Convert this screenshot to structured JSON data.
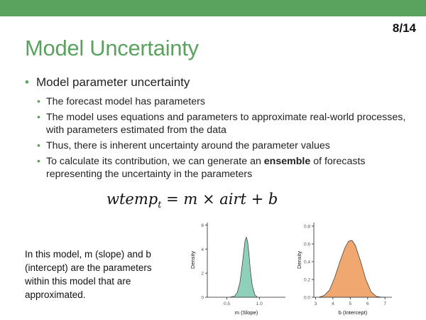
{
  "slide_number": "8/14",
  "title": "Model Uncertainty",
  "bullet_main": "Model parameter uncertainty",
  "sub_bullets": [
    "The forecast model has parameters",
    "The model uses equations and parameters to approximate real-world processes, with parameters estimated from the data",
    "Thus, there is inherent uncertainty around the parameter values"
  ],
  "sub_bullet_ensemble": {
    "before": "To calculate its contribution, we can generate an ",
    "bold": "ensemble",
    "after": " of forecasts representing the uncertainty in the parameters"
  },
  "equation": {
    "lhs": "wtemp",
    "subscript": "t",
    "rhs": "= m × airt + b"
  },
  "note": "In this model, m (slope) and b (intercept) are the parameters within this model that are approximated.",
  "colors": {
    "accent": "#5aa35e",
    "slope_fill": "#8fd0bb",
    "intercept_fill": "#f0a770"
  },
  "chart_data": [
    {
      "type": "area",
      "xlabel": "m (Slope)",
      "ylabel": "Density",
      "xlim": [
        0.2,
        1.4
      ],
      "ylim": [
        0,
        6.2
      ],
      "xticks": [
        "0.5",
        "1.0"
      ],
      "xtick_values": [
        0.5,
        1.0
      ],
      "yticks": [
        "0",
        "2",
        "4",
        "6"
      ],
      "ytick_values": [
        0,
        2,
        4,
        6
      ],
      "fill": "#8fd0bb",
      "x": [
        0.55,
        0.62,
        0.66,
        0.7,
        0.73,
        0.76,
        0.78,
        0.8,
        0.82,
        0.84,
        0.86,
        0.89,
        0.93,
        0.97
      ],
      "y": [
        0.0,
        0.1,
        0.4,
        1.2,
        2.4,
        3.8,
        4.7,
        5.0,
        4.6,
        3.6,
        2.3,
        1.0,
        0.2,
        0.0
      ]
    },
    {
      "type": "area",
      "xlabel": "b (Intercept)",
      "ylabel": "Density",
      "xlim": [
        2.9,
        7.4
      ],
      "ylim": [
        0,
        0.84
      ],
      "xticks": [
        "3",
        "4",
        "5",
        "6",
        "7"
      ],
      "xtick_values": [
        3,
        4,
        5,
        6,
        7
      ],
      "yticks": [
        "0.0",
        "0.2",
        "0.4",
        "0.6",
        "0.8"
      ],
      "ytick_values": [
        0.0,
        0.2,
        0.4,
        0.6,
        0.8
      ],
      "fill": "#f0a770",
      "x": [
        3.2,
        3.5,
        3.8,
        4.1,
        4.4,
        4.7,
        4.9,
        5.1,
        5.3,
        5.6,
        5.9,
        6.2,
        6.5,
        6.8,
        7.0
      ],
      "y": [
        0.0,
        0.02,
        0.08,
        0.22,
        0.4,
        0.56,
        0.63,
        0.64,
        0.58,
        0.4,
        0.2,
        0.06,
        0.01,
        0.0,
        0.0
      ]
    }
  ]
}
